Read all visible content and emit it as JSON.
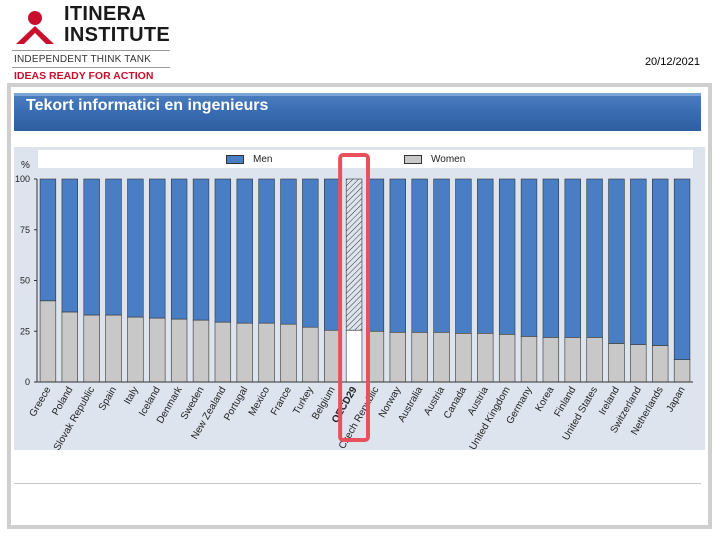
{
  "header": {
    "logo_line1": "ITINERA",
    "logo_line2": "INSTITUTE",
    "tagline": "INDEPENDENT THINK TANK",
    "slogan": "IDEAS READY FOR ACTION",
    "date": "20/12/2021"
  },
  "slide": {
    "title": "Tekort informatici en ingenieurs"
  },
  "colors": {
    "men": "#4a7ec4",
    "women": "#c8c8c8",
    "title_band": "#3a6db3",
    "highlight": "#e8505b"
  },
  "chart_data": {
    "type": "bar",
    "stacked": true,
    "ylabel": "%",
    "ylim": [
      0,
      100
    ],
    "yticks": [
      0,
      25,
      50,
      75,
      100
    ],
    "grid": false,
    "legend": "top",
    "categories": [
      "Greece",
      "Poland",
      "Slovak Republic",
      "Spain",
      "Italy",
      "Iceland",
      "Denmark",
      "Sweden",
      "New Zealand",
      "Portugal",
      "Mexico",
      "France",
      "Turkey",
      "Belgium",
      "OECD29",
      "Czech Republic",
      "Norway",
      "Australia",
      "Austria",
      "Canada",
      "Austria",
      "United Kingdom",
      "Germany",
      "Korea",
      "Finland",
      "United States",
      "Ireland",
      "Switzerland",
      "Netherlands",
      "Japan"
    ],
    "highlight_category": "OECD29",
    "series": [
      {
        "name": "Men",
        "values": [
          60,
          65.5,
          67,
          67,
          68,
          68.5,
          69,
          69.5,
          70.5,
          71,
          71,
          71.5,
          73,
          74.5,
          74.5,
          75,
          75.5,
          75.5,
          75.5,
          76,
          76,
          76.5,
          77.5,
          78,
          78,
          78,
          81,
          81.5,
          82,
          89
        ]
      },
      {
        "name": "Women",
        "values": [
          40,
          34.5,
          33,
          33,
          32,
          31.5,
          31,
          30.5,
          29.5,
          29,
          29,
          28.5,
          27,
          25.5,
          25.5,
          25,
          24.5,
          24.5,
          24.5,
          24,
          24,
          23.5,
          22.5,
          22,
          22,
          22,
          19,
          18.5,
          18,
          11
        ]
      }
    ]
  }
}
